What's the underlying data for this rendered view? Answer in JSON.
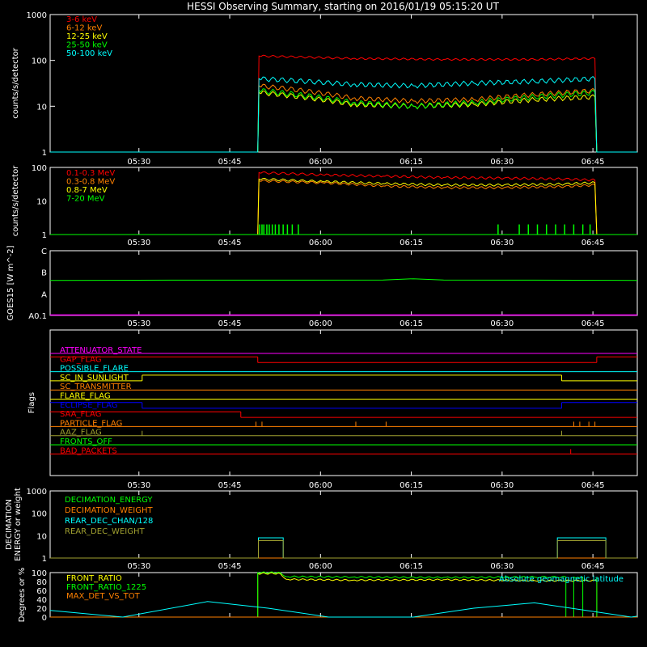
{
  "title": "HESSI Observing Summary, starting on 2016/01/19 05:15:20 UT",
  "time_ticks": [
    "05:30",
    "05:45",
    "06:00",
    "06:15",
    "06:30",
    "06:45"
  ],
  "colors": {
    "background": "#000000",
    "axes": "#ffffff",
    "red": "#ff0000",
    "orange": "#ff8000",
    "yellow": "#ffff00",
    "green": "#00ff00",
    "cyan": "#00ffff",
    "magenta": "#ff00ff",
    "blue": "#0000ff",
    "olive": "#a0a030"
  },
  "chart_data": [
    {
      "type": "line",
      "panel": "count-rates",
      "title": "HESSI Observing Summary, starting on 2016/01/19 05:15:20 UT",
      "ylabel": "counts/s/detector",
      "y_scale": "log",
      "ylim": [
        1,
        1000
      ],
      "y_ticks": [
        "1",
        "10",
        "100",
        "1000"
      ],
      "x_unit": "minutes after 05:15:20 UT",
      "xlim": [
        0,
        97
      ],
      "legend_position": "top-left",
      "series": [
        {
          "name": "3-6 keV",
          "color": "#ff0000",
          "x": [
            0,
            34.3,
            34.5,
            50,
            65,
            80,
            90,
            90.3,
            97
          ],
          "values": [
            1,
            1,
            125,
            110,
            105,
            105,
            110,
            1,
            1
          ]
        },
        {
          "name": "6-12 keV",
          "color": "#ff8000",
          "x": [
            0,
            34.3,
            34.5,
            50,
            60,
            70,
            80,
            90,
            90.3,
            97
          ],
          "values": [
            1,
            1,
            28,
            15,
            13,
            14,
            18,
            22,
            1,
            1
          ]
        },
        {
          "name": "12-25 keV",
          "color": "#ffff00",
          "x": [
            0,
            34.3,
            34.5,
            50,
            60,
            70,
            80,
            90,
            90.3,
            97
          ],
          "values": [
            1,
            1,
            20,
            11,
            10,
            11,
            14,
            16,
            1,
            1
          ]
        },
        {
          "name": "25-50 keV",
          "color": "#00ff00",
          "x": [
            0,
            34.3,
            34.5,
            50,
            60,
            70,
            80,
            90,
            90.3,
            97
          ],
          "values": [
            1,
            1,
            22,
            12,
            10,
            12,
            16,
            20,
            1,
            1
          ]
        },
        {
          "name": "50-100 keV",
          "color": "#00ffff",
          "x": [
            0,
            34.3,
            34.5,
            50,
            60,
            70,
            80,
            90,
            90.3,
            97
          ],
          "values": [
            1,
            1,
            40,
            30,
            28,
            32,
            35,
            40,
            1,
            1
          ]
        }
      ]
    },
    {
      "type": "line",
      "panel": "high-energy-rates",
      "ylabel": "counts/s/detector",
      "y_scale": "log",
      "ylim": [
        1,
        100
      ],
      "y_ticks": [
        "1",
        "10",
        "100"
      ],
      "legend_position": "top-left",
      "series": [
        {
          "name": "0.1-0.3 MeV",
          "color": "#ff0000",
          "x": [
            0,
            34.3,
            34.5,
            45,
            55,
            65,
            75,
            85,
            90,
            90.3,
            97
          ],
          "values": [
            1,
            1,
            70,
            60,
            55,
            50,
            48,
            45,
            42,
            1,
            1
          ]
        },
        {
          "name": "0.3-0.8 MeV",
          "color": "#ff8000",
          "x": [
            0,
            34.3,
            34.5,
            45,
            55,
            65,
            75,
            85,
            90,
            90.3,
            97
          ],
          "values": [
            1,
            1,
            40,
            35,
            28,
            25,
            25,
            27,
            30,
            1,
            1
          ]
        },
        {
          "name": "0.8-7 MeV",
          "color": "#ffff00",
          "x": [
            0,
            34.3,
            34.5,
            45,
            55,
            65,
            75,
            85,
            90,
            90.3,
            97
          ],
          "values": [
            1,
            1,
            45,
            38,
            33,
            30,
            30,
            32,
            35,
            1,
            1
          ]
        },
        {
          "name": "7-20 MeV",
          "color": "#00ff00",
          "x": [
            0,
            97
          ],
          "values": [
            1,
            1
          ],
          "spikes_x": [
            34.6,
            35.0,
            35.3,
            35.8,
            36.2,
            36.7,
            37.2,
            37.8,
            38.5,
            39.2,
            40.0,
            41.0,
            74.0,
            77.5,
            79.0,
            80.5,
            82.0,
            83.5,
            85.0,
            86.5,
            88.0,
            89.2
          ],
          "spikes_y": [
            2,
            2,
            2,
            2,
            2,
            2,
            2,
            2,
            2,
            2,
            2,
            2,
            2,
            2,
            2,
            2,
            2,
            2,
            2,
            2,
            2,
            2
          ]
        }
      ]
    },
    {
      "type": "line",
      "panel": "goes",
      "ylabel": "GOES15 [W m^-2]",
      "y_scale": "log",
      "ylim": [
        1e-08,
        1e-05
      ],
      "y_ticks": [
        "A0.1",
        "A",
        "B",
        "C"
      ],
      "series": [
        {
          "name": "GOES15",
          "color": "#00ff00",
          "x": [
            0,
            20,
            40,
            55,
            60,
            65,
            80,
            97
          ],
          "values": [
            4.2e-07,
            4.3e-07,
            4.3e-07,
            4.4e-07,
            5e-07,
            4.4e-07,
            4.3e-07,
            4.2e-07
          ]
        }
      ]
    },
    {
      "type": "line",
      "panel": "flags",
      "ylabel": "Flags",
      "legend_position": "inline-left",
      "series": [
        {
          "name": "ATTENUATOR_STATE",
          "color": "#ff00ff",
          "segments": [
            [
              0,
              97,
              0
            ]
          ]
        },
        {
          "name": "GAP_FLAG",
          "color": "#ff0000",
          "segments": [
            [
              0,
              34.3,
              1
            ],
            [
              34.3,
              90.3,
              0
            ],
            [
              90.3,
              97,
              1
            ]
          ]
        },
        {
          "name": "POSSIBLE_FLARE",
          "color": "#00ffff",
          "segments": [
            [
              0,
              97,
              0
            ]
          ]
        },
        {
          "name": "SC_IN_SUNLIGHT",
          "color": "#ffff00",
          "segments": [
            [
              0,
              15.2,
              0
            ],
            [
              15.2,
              84.5,
              1
            ],
            [
              84.5,
              97,
              0
            ]
          ]
        },
        {
          "name": "SC_TRANSMITTER",
          "color": "#ff8000",
          "segments": [
            [
              0,
              97,
              0
            ]
          ]
        },
        {
          "name": "FLARE_FLAG",
          "color": "#ffff00",
          "segments": [
            [
              0,
              97,
              0
            ]
          ]
        },
        {
          "name": "ECLIPSE_FLAG",
          "color": "#0000ff",
          "segments": [
            [
              0,
              15.2,
              1
            ],
            [
              15.2,
              84.5,
              0
            ],
            [
              84.5,
              97,
              1
            ]
          ]
        },
        {
          "name": "SAA_FLAG",
          "color": "#ff0000",
          "segments": [
            [
              0,
              31.5,
              1
            ],
            [
              31.5,
              97,
              0
            ]
          ]
        },
        {
          "name": "PARTICLE_FLAG",
          "color": "#ff8000",
          "segments": [
            [
              0,
              97,
              0
            ]
          ],
          "spikes_x": [
            34.0,
            35.0,
            50.5,
            55.5,
            86.5,
            87.5,
            89.0,
            90.0
          ]
        },
        {
          "name": "AAZ_FLAG",
          "color": "#a0a030",
          "segments": [
            [
              0,
              97,
              0
            ]
          ],
          "spikes_x": [
            15.2,
            84.5
          ]
        },
        {
          "name": "FRONTS_OFF",
          "color": "#00ff00",
          "segments": [
            [
              0,
              97,
              0
            ]
          ]
        },
        {
          "name": "BAD_PACKETS",
          "color": "#ff0000",
          "segments": [
            [
              0,
              97,
              0
            ]
          ],
          "spikes_x": [
            86.0
          ]
        }
      ]
    },
    {
      "type": "line",
      "panel": "decimation",
      "ylabel": "DECIMATION ENERGY or weight",
      "y_scale": "log",
      "ylim": [
        1,
        1000
      ],
      "y_ticks": [
        "1",
        "10",
        "100",
        "1000"
      ],
      "legend_position": "top-left",
      "series": [
        {
          "name": "DECIMATION_ENERGY",
          "color": "#00ff00",
          "x": [
            0,
            97
          ],
          "values": [
            1,
            1
          ]
        },
        {
          "name": "DECIMATION_WEIGHT",
          "color": "#ff8000",
          "x": [
            0,
            97
          ],
          "values": [
            1,
            1
          ]
        },
        {
          "name": "REAR_DEC_CHAN/128",
          "color": "#00ffff",
          "x": [
            0,
            34.4,
            34.4,
            38.5,
            38.5,
            83.8,
            83.8,
            91.8,
            91.8,
            97
          ],
          "values": [
            1,
            1,
            8,
            8,
            1,
            1,
            8,
            8,
            1,
            1
          ]
        },
        {
          "name": "REAR_DEC_WEIGHT",
          "color": "#a0a030",
          "x": [
            0,
            34.4,
            34.4,
            38.5,
            38.5,
            83.8,
            83.8,
            91.8,
            91.8,
            97
          ],
          "values": [
            1,
            1,
            6,
            6,
            1,
            1,
            6,
            6,
            1,
            1
          ]
        }
      ]
    },
    {
      "type": "line",
      "panel": "ratios",
      "ylabel": "Degrees or %",
      "ylim": [
        0,
        100
      ],
      "y_ticks": [
        "0",
        "20",
        "40",
        "60",
        "80",
        "100"
      ],
      "legend_position": "top-left",
      "annotation": "Absolute geomagnetic latitude",
      "series": [
        {
          "name": "FRONT_RATIO",
          "color": "#ffff00",
          "x": [
            34.3,
            34.3,
            38.0,
            39.0,
            50,
            65,
            80,
            90.3,
            90.3
          ],
          "values": [
            0,
            98,
            98,
            85,
            83,
            84,
            82,
            82,
            0
          ]
        },
        {
          "name": "FRONT_RATIO_1225",
          "color": "#00ff00",
          "x": [
            34.3,
            34.3,
            38.0,
            39.0,
            50,
            65,
            80,
            85.2,
            85.2,
            86.5,
            86.5,
            88.0,
            88.0,
            90.3,
            90.3
          ],
          "values": [
            0,
            100,
            100,
            91,
            90,
            89,
            90,
            90,
            0,
            0,
            90,
            90,
            0,
            0,
            90
          ]
        },
        {
          "name": "MAX_DET_VS_TOT",
          "color": "#ff8000",
          "x": [
            0,
            97
          ],
          "values": [
            0,
            0
          ]
        },
        {
          "name": "Absolute geomagnetic latitude",
          "color": "#00ffff",
          "x": [
            0,
            12,
            26,
            36,
            46,
            60,
            70,
            80,
            96,
            97
          ],
          "values": [
            15,
            0,
            35,
            20,
            0,
            0,
            20,
            32,
            0,
            2
          ]
        }
      ]
    }
  ]
}
